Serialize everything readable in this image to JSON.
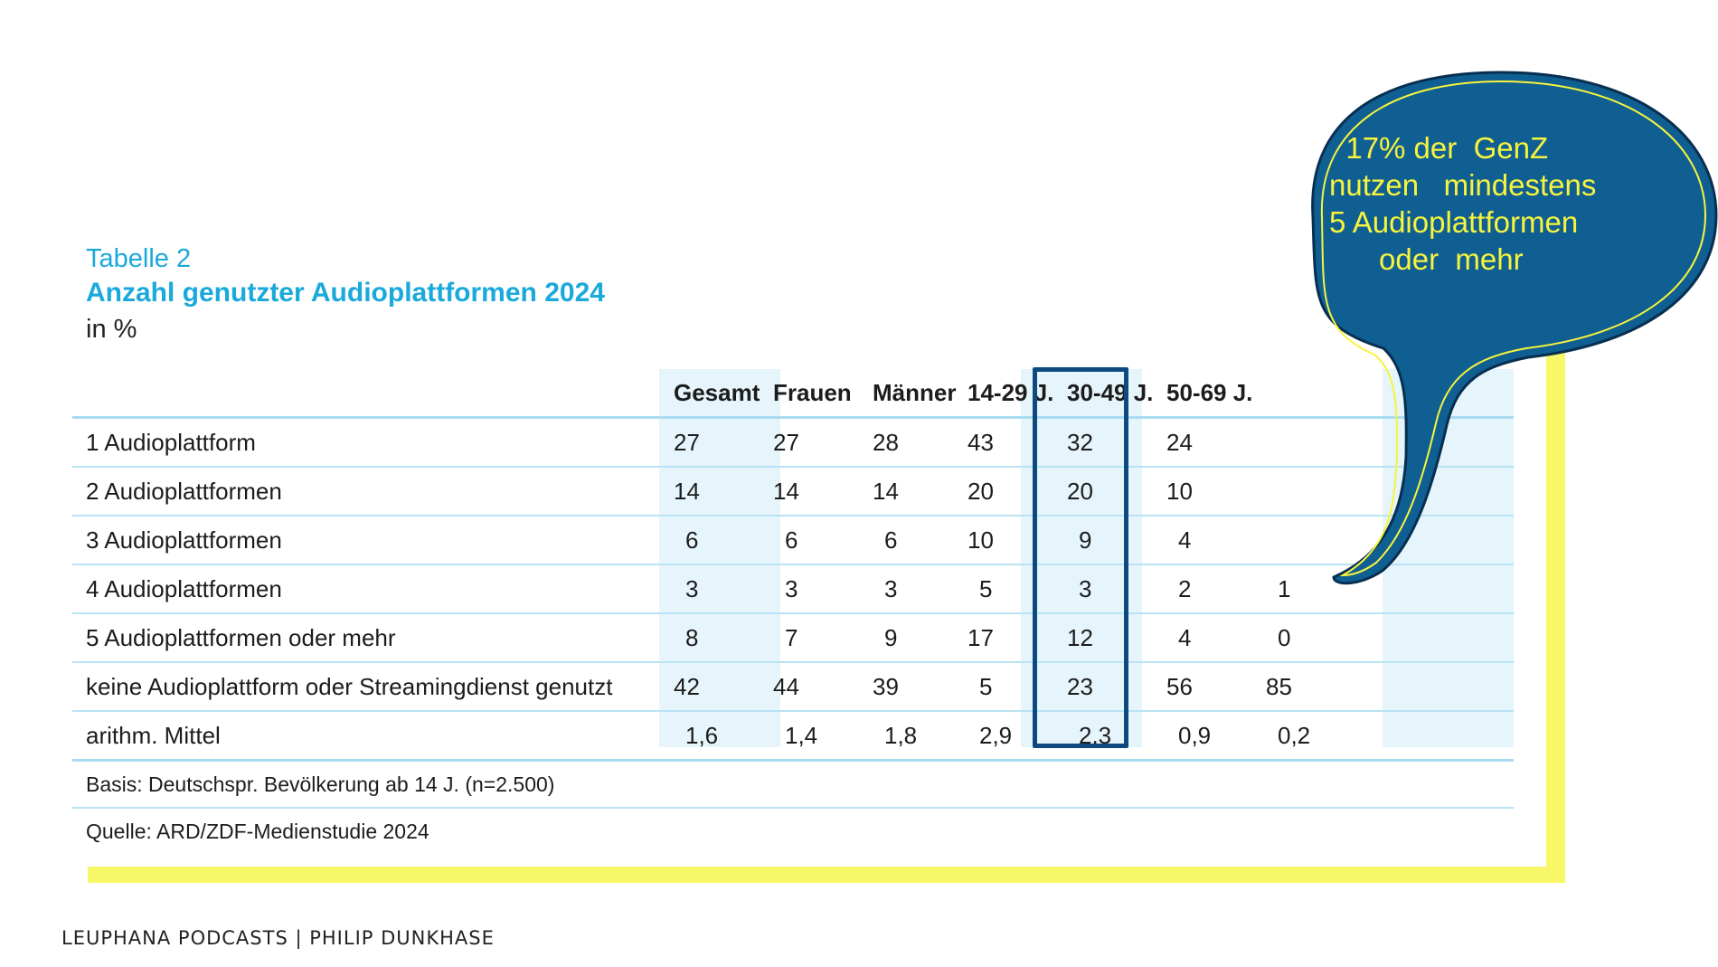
{
  "table": {
    "label": "Tabelle 2",
    "title": "Anzahl genutzter Audioplattformen 2024",
    "unit": "in %"
  },
  "chart_data": {
    "type": "table",
    "columns": [
      "Gesamt",
      "Frauen",
      "Männer",
      "14-29 J.",
      "30-49 J.",
      "50-69 J.",
      ""
    ],
    "rows": [
      {
        "label": "1 Audioplattform",
        "values": [
          "27",
          "27",
          "28",
          "43",
          "32",
          "24",
          ""
        ]
      },
      {
        "label": "2 Audioplattformen",
        "values": [
          "14",
          "14",
          "14",
          "20",
          "20",
          "10",
          ""
        ]
      },
      {
        "label": "3 Audioplattformen",
        "values": [
          "6",
          "6",
          "6",
          "10",
          "9",
          "4",
          ""
        ]
      },
      {
        "label": "4 Audioplattformen",
        "values": [
          "3",
          "3",
          "3",
          "5",
          "3",
          "2",
          "1"
        ]
      },
      {
        "label": "5 Audioplattformen oder mehr",
        "values": [
          "8",
          "7",
          "9",
          "17",
          "12",
          "4",
          "0"
        ]
      },
      {
        "label": "keine Audioplattform oder Streamingdienst genutzt",
        "values": [
          "42",
          "44",
          "39",
          "5",
          "23",
          "56",
          "85"
        ]
      },
      {
        "label": "arithm. Mittel",
        "values": [
          "1,6",
          "1,4",
          "1,8",
          "2,9",
          "2,3",
          "0,9",
          "0,2"
        ]
      }
    ],
    "highlighted_column": "14-29 J."
  },
  "notes": {
    "basis": "Basis: Deutschspr. Bevölkerung ab 14 J. (n=2.500)",
    "source": "Quelle: ARD/ZDF-Medienstudie 2024"
  },
  "callout": {
    "text": "  17% der  GenZ\nnutzen   mindestens\n5 Audioplattformen\n      oder  mehr"
  },
  "footer": {
    "text": "LEUPHANA PODCASTS | PHILIP DUNKHASE"
  },
  "colors": {
    "title_blue": "#1aa9db",
    "highlight_navy": "#0c4a80",
    "accent_yellow": "#f7f767",
    "bubble_fill": "#0f5f93",
    "bubble_text": "#f7f43d"
  }
}
